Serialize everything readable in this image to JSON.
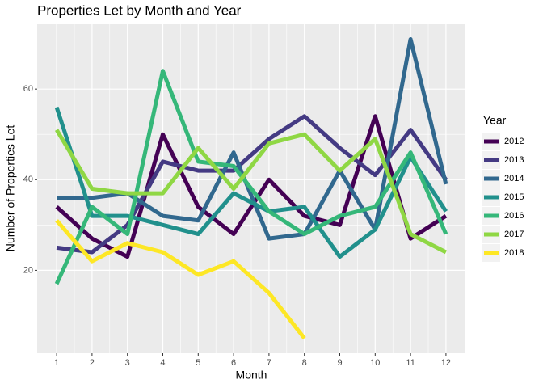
{
  "chart_data": {
    "type": "line",
    "title": "Properties Let by Month and Year",
    "x_label": "Month",
    "y_label": "Number of Properties Let",
    "legend_title": "Year",
    "x": [
      1,
      2,
      3,
      4,
      5,
      6,
      7,
      8,
      9,
      10,
      11,
      12
    ],
    "series": [
      {
        "name": "2012",
        "color": "#440154",
        "values": [
          34,
          27,
          23,
          50,
          34,
          28,
          40,
          32,
          30,
          54,
          27,
          32
        ]
      },
      {
        "name": "2013",
        "color": "#443A83",
        "values": [
          25,
          24,
          30,
          44,
          42,
          42,
          49,
          54,
          47,
          41,
          51,
          40
        ]
      },
      {
        "name": "2014",
        "color": "#31688E",
        "values": [
          36,
          36,
          37,
          32,
          31,
          46,
          27,
          28,
          42,
          29,
          71,
          39
        ]
      },
      {
        "name": "2015",
        "color": "#21908C",
        "values": [
          56,
          32,
          32,
          30,
          28,
          37,
          33,
          34,
          23,
          29,
          45,
          33
        ]
      },
      {
        "name": "2016",
        "color": "#35B779",
        "values": [
          17,
          34,
          28,
          64,
          44,
          43,
          33,
          28,
          32,
          34,
          46,
          28
        ]
      },
      {
        "name": "2017",
        "color": "#8FD744",
        "values": [
          51,
          38,
          37,
          37,
          47,
          38,
          48,
          50,
          42,
          49,
          28,
          24
        ]
      },
      {
        "name": "2018",
        "color": "#FDE725",
        "values": [
          31,
          22,
          26,
          24,
          19,
          22,
          15,
          5,
          null,
          null,
          null,
          null
        ]
      }
    ],
    "xlim": [
      0.45,
      12.55
    ],
    "xticks": [
      1,
      2,
      3,
      4,
      5,
      6,
      7,
      8,
      9,
      10,
      11,
      12
    ],
    "ylim": [
      1.7,
      74.3
    ],
    "yticks": [
      20,
      40,
      60
    ],
    "grid": true,
    "legend": "right"
  }
}
